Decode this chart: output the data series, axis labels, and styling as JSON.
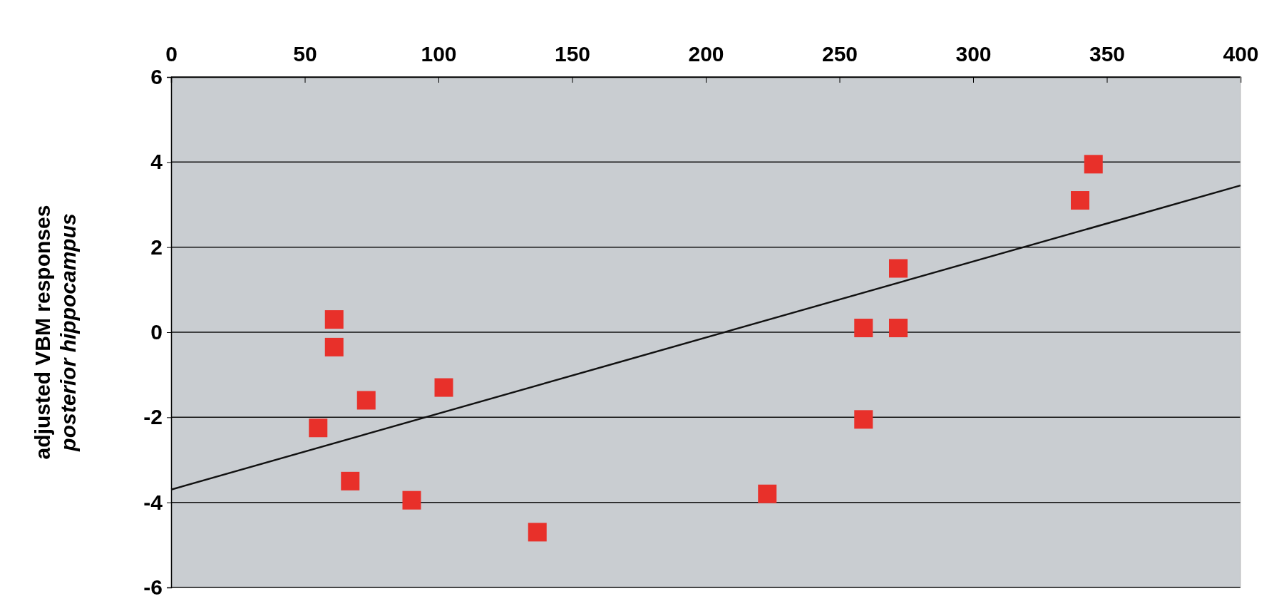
{
  "chart_data": {
    "type": "scatter",
    "ylabel": "adjusted VBM responses\nposterior hippocampus",
    "xlim": [
      0,
      400
    ],
    "xticks": [
      0,
      50,
      100,
      150,
      200,
      250,
      300,
      350,
      400
    ],
    "ylim": [
      -6,
      6
    ],
    "yticks": [
      -6,
      -4,
      -2,
      0,
      2,
      4,
      6
    ],
    "grid": "y",
    "marker": "square",
    "series": [
      {
        "color": "#e8302a",
        "x": [
          61,
          61,
          73,
          55,
          67,
          90,
          102,
          137,
          223,
          259,
          272,
          272,
          259,
          340,
          345
        ],
        "values": [
          0.3,
          -0.35,
          -1.6,
          -2.25,
          -3.5,
          -3.95,
          -1.3,
          -4.7,
          -3.8,
          0.1,
          0.1,
          1.5,
          -2.05,
          3.1,
          3.95
        ]
      },
      {
        "type": "line",
        "color": "#111111",
        "marker": "none",
        "x": [
          0,
          400
        ],
        "values": [
          -3.7,
          3.45
        ]
      }
    ]
  }
}
